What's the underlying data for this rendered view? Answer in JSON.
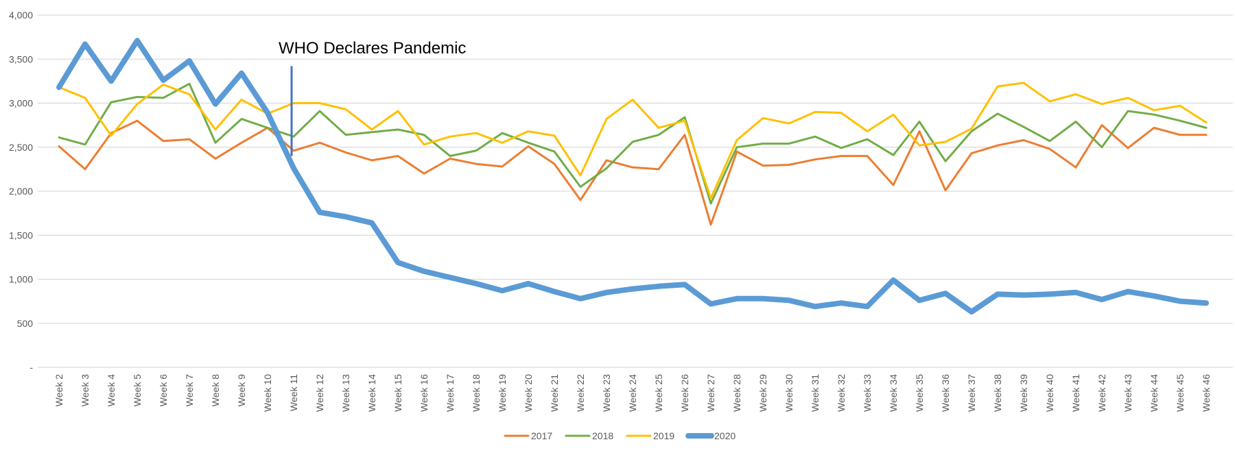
{
  "chart_data": {
    "type": "line",
    "title": "",
    "xlabel": "",
    "ylabel": "",
    "ylim": [
      0,
      4000
    ],
    "y_ticks": [
      0,
      500,
      1000,
      1500,
      2000,
      2500,
      3000,
      3500,
      4000
    ],
    "y_tick_labels": [
      "-",
      "500",
      "1,000",
      "1,500",
      "2,000",
      "2,500",
      "3,000",
      "3,500",
      "4,000"
    ],
    "grid": "horizontal",
    "legend_position": "bottom",
    "categories": [
      "Week 2",
      "Week 3",
      "Week 4",
      "Week 5",
      "Week 6",
      "Week 7",
      "Week 8",
      "Week 9",
      "Week 10",
      "Week 11",
      "Week 12",
      "Week 13",
      "Week 14",
      "Week 15",
      "Week 16",
      "Week 17",
      "Week 18",
      "Week 19",
      "Week 20",
      "Week 21",
      "Week 22",
      "Week 23",
      "Week 24",
      "Week 25",
      "Week 26",
      "Week 27",
      "Week 28",
      "Week 29",
      "Week 30",
      "Week 31",
      "Week 32",
      "Week 33",
      "Week 34",
      "Week 35",
      "Week 36",
      "Week 37",
      "Week 38",
      "Week 39",
      "Week 40",
      "Week 41",
      "Week 42",
      "Week 43",
      "Week 44",
      "Week 45",
      "Week 46"
    ],
    "series": [
      {
        "name": "2017",
        "color": "#ED7D31",
        "width": 3,
        "values": [
          2510,
          2250,
          2660,
          2800,
          2570,
          2590,
          2370,
          2550,
          2720,
          2460,
          2550,
          2440,
          2350,
          2400,
          2200,
          2370,
          2310,
          2280,
          2510,
          2310,
          1900,
          2350,
          2270,
          2250,
          2640,
          1620,
          2450,
          2290,
          2300,
          2360,
          2400,
          2400,
          2070,
          2680,
          2010,
          2430,
          2520,
          2580,
          2480,
          2270,
          2750,
          2490,
          2720,
          2640,
          2640
        ]
      },
      {
        "name": "2018",
        "color": "#70AD47",
        "width": 3,
        "values": [
          2610,
          2530,
          3010,
          3070,
          3060,
          3220,
          2550,
          2820,
          2720,
          2620,
          2910,
          2640,
          2670,
          2700,
          2640,
          2400,
          2460,
          2660,
          2550,
          2450,
          2050,
          2260,
          2560,
          2640,
          2840,
          1860,
          2500,
          2540,
          2540,
          2620,
          2490,
          2590,
          2410,
          2790,
          2340,
          2680,
          2880,
          2730,
          2570,
          2790,
          2500,
          2910,
          2870,
          2800,
          2720
        ]
      },
      {
        "name": "2019",
        "color": "#FFC000",
        "width": 3,
        "values": [
          3180,
          3060,
          2630,
          2990,
          3210,
          3100,
          2700,
          3040,
          2880,
          3000,
          3000,
          2930,
          2700,
          2910,
          2530,
          2620,
          2660,
          2550,
          2680,
          2630,
          2180,
          2820,
          3040,
          2720,
          2800,
          1920,
          2580,
          2830,
          2770,
          2900,
          2890,
          2680,
          2870,
          2520,
          2560,
          2710,
          3190,
          3230,
          3020,
          3100,
          2990,
          3060,
          2920,
          2970,
          2780
        ]
      },
      {
        "name": "2020",
        "color": "#5B9BD5",
        "width": 8,
        "values": [
          3180,
          3670,
          3250,
          3710,
          3260,
          3480,
          2990,
          3340,
          2890,
          2260,
          1760,
          1710,
          1640,
          1190,
          1090,
          1020,
          950,
          870,
          950,
          860,
          780,
          850,
          890,
          920,
          940,
          720,
          780,
          780,
          760,
          690,
          730,
          690,
          990,
          760,
          840,
          630,
          830,
          820,
          830,
          850,
          770,
          860,
          810,
          750,
          730
        ]
      }
    ],
    "annotation": {
      "text": "WHO Declares Pandemic",
      "x_category": "Week 11",
      "y_from": 2400,
      "y_to": 3420,
      "color": "#4472C4"
    }
  }
}
